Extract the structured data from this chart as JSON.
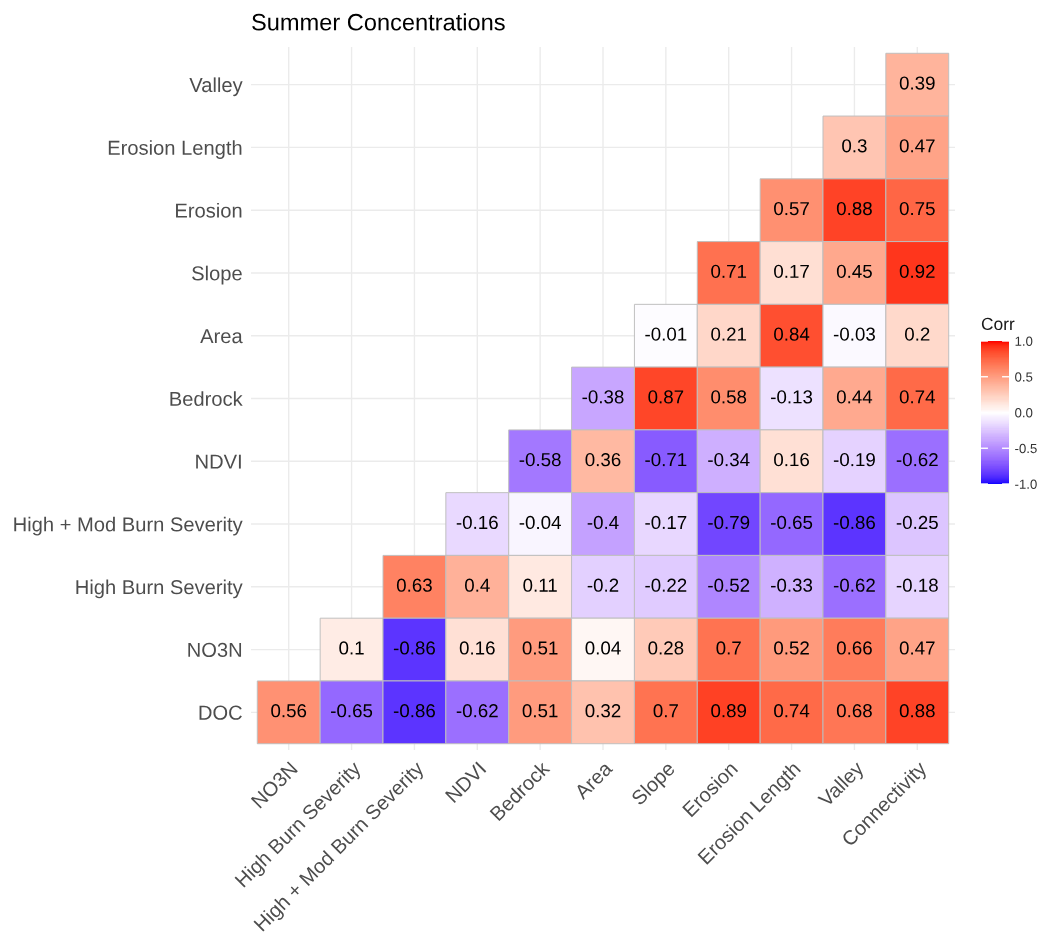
{
  "chart_data": {
    "type": "heatmap",
    "title": "Summer Concentrations",
    "categories": [
      "NO3N",
      "High Burn Severity",
      "High + Mod Burn Severity",
      "NDVI",
      "Bedrock",
      "Area",
      "Slope",
      "Erosion",
      "Erosion Length",
      "Valley",
      "Connectivity"
    ],
    "y_categories": [
      "Valley",
      "Erosion Length",
      "Erosion",
      "Slope",
      "Area",
      "Bedrock",
      "NDVI",
      "High + Mod Burn Severity",
      "High Burn Severity",
      "NO3N",
      "DOC"
    ],
    "cells": [
      [
        null,
        null,
        null,
        null,
        null,
        null,
        null,
        null,
        null,
        null,
        0.39
      ],
      [
        null,
        null,
        null,
        null,
        null,
        null,
        null,
        null,
        null,
        0.3,
        0.47
      ],
      [
        null,
        null,
        null,
        null,
        null,
        null,
        null,
        null,
        0.57,
        0.88,
        0.75
      ],
      [
        null,
        null,
        null,
        null,
        null,
        null,
        null,
        0.71,
        0.17,
        0.45,
        0.92
      ],
      [
        null,
        null,
        null,
        null,
        null,
        null,
        -0.01,
        0.21,
        0.84,
        -0.03,
        0.2
      ],
      [
        null,
        null,
        null,
        null,
        null,
        -0.38,
        0.87,
        0.58,
        -0.13,
        0.44,
        0.74
      ],
      [
        null,
        null,
        null,
        null,
        -0.58,
        0.36,
        -0.71,
        -0.34,
        0.16,
        -0.19,
        -0.62
      ],
      [
        null,
        null,
        null,
        -0.16,
        -0.04,
        -0.4,
        -0.17,
        -0.79,
        -0.65,
        -0.86,
        -0.25
      ],
      [
        null,
        null,
        0.63,
        0.4,
        0.11,
        -0.2,
        -0.22,
        -0.52,
        -0.33,
        -0.62,
        -0.18
      ],
      [
        null,
        0.1,
        -0.86,
        0.16,
        0.51,
        0.04,
        0.28,
        0.7,
        0.52,
        0.66,
        0.47
      ],
      [
        0.56,
        -0.65,
        -0.86,
        -0.62,
        0.51,
        0.32,
        0.7,
        0.89,
        0.74,
        0.68,
        0.88
      ]
    ],
    "clabel": "Corr",
    "clim": [
      -1,
      1
    ],
    "cticks": [
      {
        "value": -1,
        "label": "-1.0"
      },
      {
        "value": -0.5,
        "label": "-0.5"
      },
      {
        "value": 0,
        "label": "0.0"
      },
      {
        "value": 0.5,
        "label": "0.5"
      },
      {
        "value": 1,
        "label": "1.0"
      }
    ],
    "data_labels": true,
    "grid": true
  }
}
